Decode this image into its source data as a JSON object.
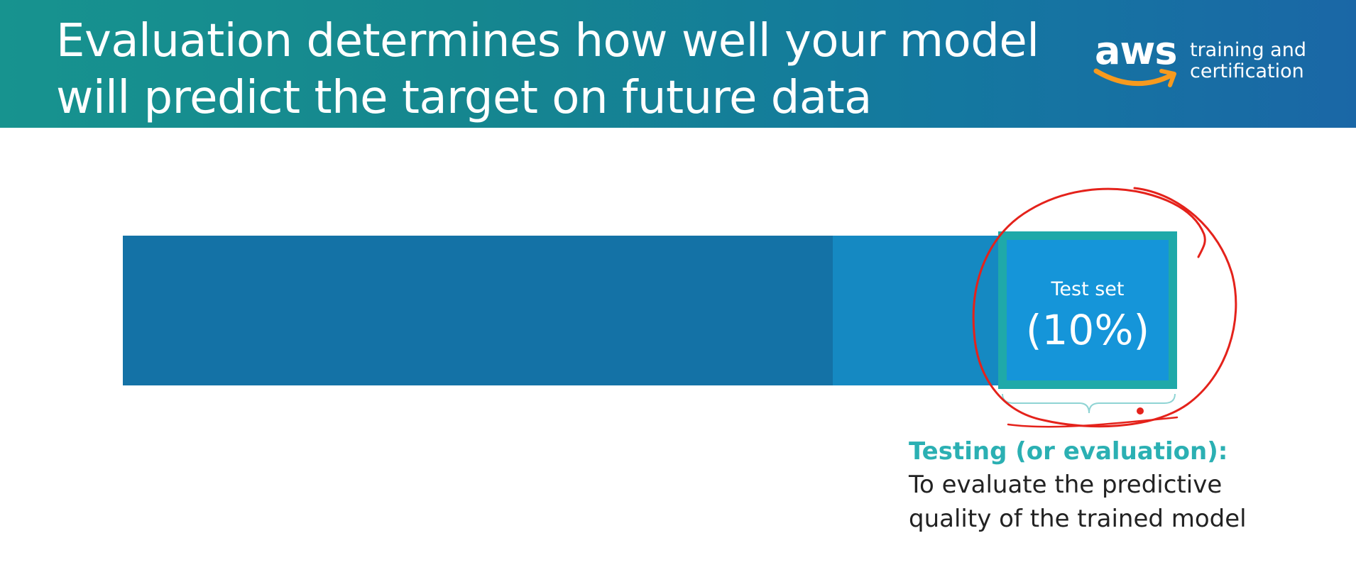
{
  "slide": {
    "title_lines": [
      "Evaluation determines how well your model",
      "will predict the target on future data"
    ]
  },
  "logo": {
    "word": "aws",
    "tagline_lines": [
      "training and",
      "certification"
    ]
  },
  "diagram": {
    "test_set": {
      "label": "Test set",
      "value": "(10%)"
    },
    "caption": {
      "heading": "Testing (or evaluation):",
      "body_lines": [
        "To evaluate the predictive",
        "quality of the trained model"
      ]
    }
  },
  "colors": {
    "header_teal": "#17938f",
    "header_blue": "#1a67a6",
    "training_segment": "#1472a6",
    "validation_segment": "#1589c2",
    "test_segment": "#1595d9",
    "test_border": "#1fa9a9",
    "caption_heading": "#2bb0b3",
    "annotation_ink": "#e4221b",
    "logo_smile": "#f79a1e"
  }
}
